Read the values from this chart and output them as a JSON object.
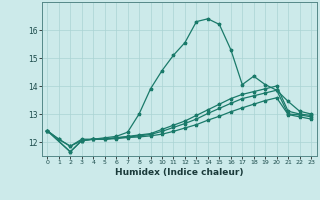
{
  "xlabel": "Humidex (Indice chaleur)",
  "bg_color": "#cceaea",
  "grid_color": "#aad4d4",
  "line_color": "#1a7a6a",
  "xlim": [
    -0.5,
    23.5
  ],
  "ylim": [
    11.5,
    17.0
  ],
  "xticks": [
    0,
    1,
    2,
    3,
    4,
    5,
    6,
    7,
    8,
    9,
    10,
    11,
    12,
    13,
    14,
    15,
    16,
    17,
    18,
    19,
    20,
    21,
    22,
    23
  ],
  "yticks": [
    12,
    13,
    14,
    15,
    16
  ],
  "line1_x": [
    0,
    1,
    2,
    3,
    4,
    5,
    6,
    7,
    8,
    9,
    10,
    11,
    12,
    13,
    14,
    15,
    16,
    17,
    18,
    19,
    20,
    21,
    22,
    23
  ],
  "line1_y": [
    12.4,
    12.1,
    11.85,
    12.1,
    12.1,
    12.15,
    12.2,
    12.35,
    13.0,
    13.9,
    14.55,
    15.1,
    15.55,
    16.3,
    16.4,
    16.2,
    15.3,
    14.05,
    14.35,
    14.05,
    13.85,
    13.45,
    13.1,
    13.0
  ],
  "line2_x": [
    0,
    1,
    2,
    3,
    4,
    5,
    6,
    7,
    8,
    9,
    10,
    11,
    12,
    13,
    14,
    15,
    16,
    17,
    18,
    19,
    20,
    21,
    22,
    23
  ],
  "line2_y": [
    12.4,
    12.1,
    11.85,
    12.05,
    12.1,
    12.1,
    12.15,
    12.2,
    12.25,
    12.3,
    12.45,
    12.6,
    12.75,
    12.95,
    13.15,
    13.35,
    13.55,
    13.7,
    13.8,
    13.9,
    14.0,
    13.1,
    13.0,
    12.95
  ],
  "line3_x": [
    0,
    2,
    3,
    4,
    5,
    6,
    7,
    8,
    9,
    10,
    11,
    12,
    13,
    14,
    15,
    16,
    17,
    18,
    19,
    20,
    21,
    22,
    23
  ],
  "line3_y": [
    12.4,
    11.65,
    12.05,
    12.1,
    12.1,
    12.15,
    12.18,
    12.22,
    12.27,
    12.38,
    12.52,
    12.66,
    12.82,
    13.02,
    13.2,
    13.38,
    13.55,
    13.65,
    13.75,
    13.85,
    13.0,
    12.97,
    12.9
  ],
  "line4_x": [
    0,
    2,
    3,
    4,
    5,
    6,
    7,
    8,
    9,
    10,
    11,
    12,
    13,
    14,
    15,
    16,
    17,
    18,
    19,
    20,
    21,
    22,
    23
  ],
  "line4_y": [
    12.4,
    11.65,
    12.05,
    12.1,
    12.1,
    12.12,
    12.16,
    12.18,
    12.22,
    12.28,
    12.38,
    12.5,
    12.62,
    12.78,
    12.92,
    13.08,
    13.22,
    13.35,
    13.48,
    13.58,
    12.98,
    12.9,
    12.82
  ]
}
